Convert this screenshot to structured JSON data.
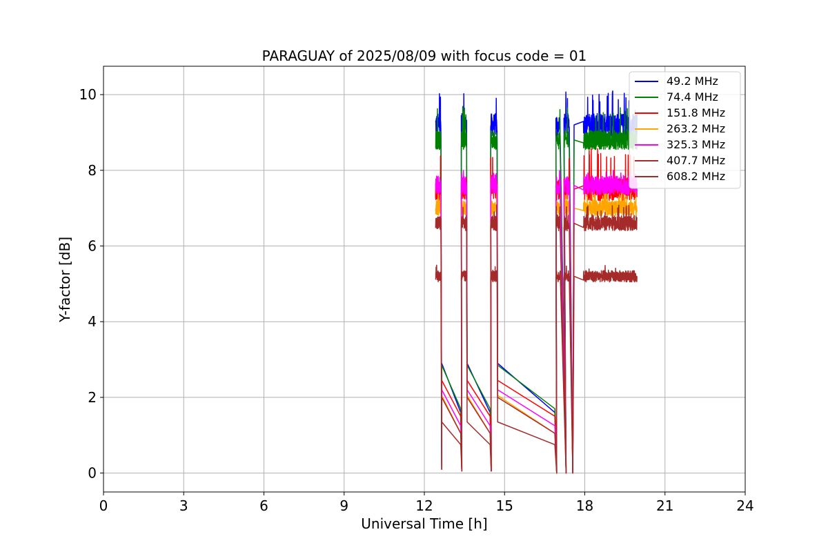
{
  "chart_data": {
    "type": "line",
    "title": "PARAGUAY of 2025/08/09 with focus code = 01",
    "xlabel": "Universal Time [h]",
    "ylabel": "Y-factor [dB]",
    "xlim": [
      0,
      24
    ],
    "ylim": [
      -0.5,
      10.75
    ],
    "xticks": [
      0,
      3,
      6,
      9,
      12,
      15,
      18,
      21,
      24
    ],
    "yticks": [
      0,
      2,
      4,
      6,
      8,
      10
    ],
    "grid": true,
    "legend_position": "top-right",
    "segments": [
      [
        12.42,
        12.62
      ],
      [
        13.38,
        13.58
      ],
      [
        14.48,
        14.72
      ],
      [
        16.92,
        17.08
      ],
      [
        17.22,
        17.42
      ],
      [
        17.52,
        17.52
      ],
      [
        17.95,
        19.95
      ]
    ],
    "drops": [
      12.65,
      13.4,
      14.5,
      16.95,
      17.3,
      17.55
    ],
    "series": [
      {
        "name": "  49.2 MHz",
        "color": "#0000ff",
        "level": 9.2,
        "noise": 0.3,
        "spike": 10.1,
        "low_start": 2.9,
        "low_end": 1.6
      },
      {
        "name": "  74.4 MHz",
        "color": "#008000",
        "level": 8.8,
        "noise": 0.25,
        "spike": 9.7,
        "low_start": 2.85,
        "low_end": 1.7
      },
      {
        "name": "151.8 MHz",
        "color": "#ff0000",
        "level": 7.5,
        "noise": 0.3,
        "spike": 8.6,
        "low_start": 2.45,
        "low_end": 1.5
      },
      {
        "name": "263.2 MHz",
        "color": "#ffa500",
        "level": 7.0,
        "noise": 0.2,
        "spike": 7.5,
        "low_start": 2.05,
        "low_end": 1.05
      },
      {
        "name": "325.3 MHz",
        "color": "#ff00ff",
        "level": 7.6,
        "noise": 0.25,
        "spike": 8.0,
        "low_start": 2.2,
        "low_end": 1.25
      },
      {
        "name": "407.7 MHz",
        "color": "#a52a2a",
        "level": 6.6,
        "noise": 0.2,
        "spike": 7.1,
        "low_start": 2.0,
        "low_end": 1.05
      },
      {
        "name": "608.2 MHz",
        "color": "#a52a2a",
        "level": 5.2,
        "noise": 0.15,
        "spike": 5.5,
        "low_start": 1.35,
        "low_end": 0.75
      }
    ]
  }
}
